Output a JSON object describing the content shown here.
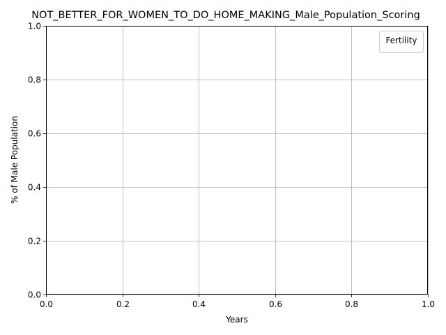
{
  "chart_data": {
    "type": "line",
    "title": "NOT_BETTER_FOR_WOMEN_TO_DO_HOME_MAKING_Male_Population_Scoring",
    "xlabel": "Years",
    "ylabel": "% of Male Population",
    "xlim": [
      0.0,
      1.0
    ],
    "ylim": [
      0.0,
      1.0
    ],
    "x_ticks": [
      "0.0",
      "0.2",
      "0.4",
      "0.6",
      "0.8",
      "1.0"
    ],
    "y_ticks": [
      "0.0",
      "0.2",
      "0.4",
      "0.6",
      "0.8",
      "1.0"
    ],
    "grid": true,
    "legend": {
      "title": "Fertility",
      "placement": "top-right",
      "entries": []
    },
    "series": []
  },
  "colors": {
    "grid": "#b0b0b0",
    "axis": "#000000",
    "background": "#ffffff"
  }
}
